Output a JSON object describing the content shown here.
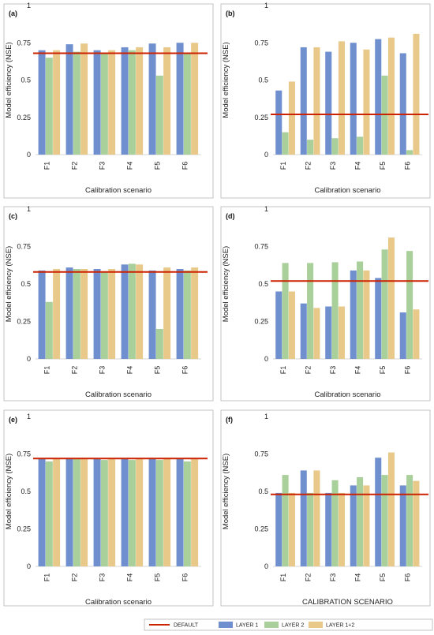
{
  "colors": {
    "layer1": "#6f8fcf",
    "layer2": "#a9cf9b",
    "layer12": "#e8c98a",
    "default": "#cc2200"
  },
  "legend": {
    "items": [
      {
        "label": "DEFAULT",
        "kind": "line",
        "color": "#cc2200"
      },
      {
        "label": "LAYER 1",
        "kind": "bar",
        "color": "#6f8fcf"
      },
      {
        "label": "LAYER 2",
        "kind": "bar",
        "color": "#a9cf9b"
      },
      {
        "label": "LAYER 1+2",
        "kind": "bar",
        "color": "#e8c98a"
      }
    ],
    "placement": "bottom-center"
  },
  "chart_data": [
    {
      "panel": "(a)",
      "type": "bar",
      "categories": [
        "F1",
        "F2",
        "F3",
        "F4",
        "F5",
        "F6"
      ],
      "series": [
        {
          "name": "LAYER 1",
          "values": [
            0.7,
            0.74,
            0.7,
            0.72,
            0.745,
            0.75
          ]
        },
        {
          "name": "LAYER 2",
          "values": [
            0.65,
            0.69,
            0.68,
            0.7,
            0.53,
            0.68
          ]
        },
        {
          "name": "LAYER 1+2",
          "values": [
            0.7,
            0.745,
            0.7,
            0.72,
            0.72,
            0.75
          ]
        }
      ],
      "default": 0.68,
      "ylabel": "Model efficiency (NSE)",
      "xlabel": "Calibration scenario",
      "yticks": [
        "0",
        "0.25",
        "0.5",
        "0.75",
        "1"
      ],
      "ylim": [
        0,
        1
      ]
    },
    {
      "panel": "(b)",
      "type": "bar",
      "categories": [
        "F1",
        "F2",
        "F3",
        "F4",
        "F5",
        "F6"
      ],
      "series": [
        {
          "name": "LAYER 1",
          "values": [
            0.43,
            0.72,
            0.69,
            0.75,
            0.775,
            0.68
          ]
        },
        {
          "name": "LAYER 2",
          "values": [
            0.15,
            0.1,
            0.11,
            0.12,
            0.53,
            0.03
          ]
        },
        {
          "name": "LAYER 1+2",
          "values": [
            0.49,
            0.72,
            0.76,
            0.705,
            0.785,
            0.81
          ]
        }
      ],
      "default": 0.27,
      "ylabel": "Model efficiency (NSE)",
      "xlabel": "Calibration scenario",
      "yticks": [
        "0",
        "0.25",
        "0.5",
        "0.75",
        "1"
      ],
      "ylim": [
        0,
        1
      ]
    },
    {
      "panel": "(c)",
      "type": "bar",
      "categories": [
        "F1",
        "F2",
        "F3",
        "F4",
        "F5",
        "F6"
      ],
      "series": [
        {
          "name": "LAYER 1",
          "values": [
            0.59,
            0.61,
            0.6,
            0.63,
            0.59,
            0.6
          ]
        },
        {
          "name": "LAYER 2",
          "values": [
            0.38,
            0.6,
            0.58,
            0.635,
            0.2,
            0.59
          ]
        },
        {
          "name": "LAYER 1+2",
          "values": [
            0.6,
            0.6,
            0.6,
            0.63,
            0.61,
            0.61
          ]
        }
      ],
      "default": 0.58,
      "ylabel": "Model efficiency (NSE)",
      "xlabel": "Calibration scenario",
      "yticks": [
        "0",
        "0.25",
        "0.5",
        "0.75",
        "1"
      ],
      "ylim": [
        0,
        1
      ]
    },
    {
      "panel": "(d)",
      "type": "bar",
      "categories": [
        "F1",
        "F2",
        "F3",
        "F4",
        "F5",
        "F6"
      ],
      "series": [
        {
          "name": "LAYER 1",
          "values": [
            0.45,
            0.37,
            0.35,
            0.59,
            0.54,
            0.31
          ]
        },
        {
          "name": "LAYER 2",
          "values": [
            0.64,
            0.64,
            0.645,
            0.65,
            0.73,
            0.72
          ]
        },
        {
          "name": "LAYER 1+2",
          "values": [
            0.45,
            0.34,
            0.35,
            0.59,
            0.81,
            0.33
          ]
        }
      ],
      "default": 0.52,
      "ylabel": "Model efficiency (NSE)",
      "xlabel": "Calibration scenario",
      "yticks": [
        "0",
        "0.25",
        "0.5",
        "0.75",
        "1"
      ],
      "ylim": [
        0,
        1
      ]
    },
    {
      "panel": "(e)",
      "type": "bar",
      "categories": [
        "F1",
        "F2",
        "F3",
        "F4",
        "F5",
        "F6"
      ],
      "series": [
        {
          "name": "LAYER 1",
          "values": [
            0.72,
            0.72,
            0.72,
            0.72,
            0.72,
            0.72
          ]
        },
        {
          "name": "LAYER 2",
          "values": [
            0.7,
            0.72,
            0.71,
            0.71,
            0.71,
            0.7
          ]
        },
        {
          "name": "LAYER 1+2",
          "values": [
            0.72,
            0.72,
            0.72,
            0.72,
            0.72,
            0.72
          ]
        }
      ],
      "default": 0.72,
      "ylabel": "Model efficiency (NSE)",
      "xlabel": "Calibration scenario",
      "yticks": [
        "0",
        "0.25",
        "0.5",
        "0.75",
        "1"
      ],
      "ylim": [
        0,
        1
      ]
    },
    {
      "panel": "(f)",
      "type": "bar",
      "categories": [
        "F1",
        "F2",
        "F3",
        "F4",
        "F5",
        "F6"
      ],
      "series": [
        {
          "name": "LAYER 1",
          "values": [
            0.49,
            0.64,
            0.49,
            0.54,
            0.725,
            0.54
          ]
        },
        {
          "name": "LAYER 2",
          "values": [
            0.61,
            0.49,
            0.575,
            0.595,
            0.61,
            0.61
          ]
        },
        {
          "name": "LAYER 1+2",
          "values": [
            0.49,
            0.64,
            0.49,
            0.54,
            0.76,
            0.57
          ]
        }
      ],
      "default": 0.48,
      "ylabel": "Model efficiency (NSE)",
      "xlabel": "CALIBRATION SCENARIO",
      "yticks": [
        "0",
        "0.25",
        "0.5",
        "0.75",
        "1"
      ],
      "ylim": [
        0,
        1
      ]
    }
  ]
}
